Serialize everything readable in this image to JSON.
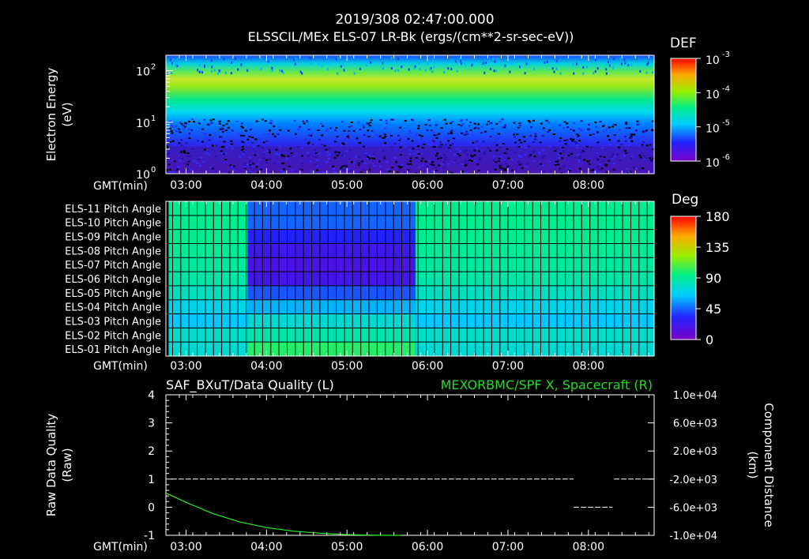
{
  "header": {
    "datetime": "2019/308 02:47:00.000",
    "instrument": "ELSSCIL/MEx ELS-07 LR-Bk  (ergs/(cm**2-sr-sec-eV))"
  },
  "colors": {
    "background": "#000000",
    "axis": "#ffffff",
    "quality_line": "#ffffff",
    "spacecraft_line": "#22ee22",
    "right_title": "#22dd22"
  },
  "chart_data": [
    {
      "type": "heatmap",
      "name": "electron-energy-spectrogram",
      "ylabel_1": "Electron Energy",
      "ylabel_2": "(eV)",
      "yscale": "log",
      "ylim": [
        1,
        200
      ],
      "y_ticks": [
        {
          "value": 1,
          "base": "10",
          "exp": "0"
        },
        {
          "value": 10,
          "base": "10",
          "exp": "1"
        },
        {
          "value": 100,
          "base": "10",
          "exp": "2"
        }
      ],
      "x_axis_label": "GMT(min)",
      "xlim_min": [
        165,
        529
      ],
      "x_ticks": [
        "03:00",
        "04:00",
        "05:00",
        "06:00",
        "07:00",
        "08:00"
      ],
      "x_tick_values": [
        180,
        240,
        300,
        360,
        420,
        480
      ],
      "colorbar": {
        "title": "DEF",
        "scale": "log",
        "range": [
          1e-06,
          0.001
        ],
        "ticks": [
          {
            "base": "10",
            "exp": "-3"
          },
          {
            "base": "10",
            "exp": "-4"
          },
          {
            "base": "10",
            "exp": "-5"
          },
          {
            "base": "10",
            "exp": "-6"
          }
        ]
      }
    },
    {
      "type": "heatmap",
      "name": "pitch-angle-grid",
      "rows": [
        "ELS-11 Pitch Angle",
        "ELS-10 Pitch Angle",
        "ELS-09 Pitch Angle",
        "ELS-08 Pitch Angle",
        "ELS-07 Pitch Angle",
        "ELS-06 Pitch Angle",
        "ELS-05 Pitch Angle",
        "ELS-04 Pitch Angle",
        "ELS-03 Pitch Angle",
        "ELS-02 Pitch Angle",
        "ELS-01 Pitch Angle"
      ],
      "x_axis_label": "GMT(min)",
      "x_ticks": [
        "03:00",
        "04:00",
        "05:00",
        "06:00",
        "07:00",
        "08:00"
      ],
      "x_tick_values": [
        180,
        240,
        300,
        360,
        420,
        480
      ],
      "xlim_min": [
        165,
        529
      ],
      "segments_min": [
        {
          "start": 167,
          "end": 226,
          "values": [
            92,
            92,
            92,
            90,
            88,
            86,
            80,
            70,
            64,
            78,
            76
          ]
        },
        {
          "start": 226,
          "end": 290,
          "values": [
            45,
            45,
            32,
            22,
            18,
            20,
            42,
            60,
            76,
            85,
            100
          ]
        },
        {
          "start": 290,
          "end": 351,
          "values": [
            45,
            45,
            32,
            22,
            18,
            20,
            42,
            60,
            76,
            85,
            100
          ]
        },
        {
          "start": 351,
          "end": 530,
          "values": [
            92,
            92,
            92,
            90,
            88,
            86,
            80,
            70,
            64,
            78,
            76
          ]
        }
      ],
      "colorbar": {
        "title": "Deg",
        "range": [
          0,
          180
        ],
        "ticks": [
          "180",
          "135",
          "90",
          "45",
          "0"
        ]
      }
    },
    {
      "type": "line",
      "name": "data-quality-and-spacecraft-position",
      "title_left": "SAF_BXuT/Data Quality (L)",
      "title_right": "MEXORBMC/SPF X, Spacecraft (R)",
      "ylabel_left_1": "Raw Data Quality",
      "ylabel_left_2": "(Raw)",
      "ylabel_right_1": "Component Distance",
      "ylabel_right_2": "(km)",
      "ylim_left": [
        -1,
        4
      ],
      "left_ticks": [
        "4",
        "3",
        "2",
        "1",
        "0",
        "-1"
      ],
      "ylim_right": [
        -10000,
        10000
      ],
      "right_ticks": [
        "1.0e+04",
        "6.0e+03",
        "2.0e+03",
        "-2.0e+03",
        "-6.0e+03",
        "-1.0e+04"
      ],
      "x_axis_label": "GMT(min)",
      "x_ticks": [
        "03:00",
        "04:00",
        "05:00",
        "06:00",
        "07:00",
        "08:00"
      ],
      "x_tick_values": [
        180,
        240,
        300,
        360,
        420,
        480
      ],
      "xlim_min": [
        165,
        529
      ],
      "series": [
        {
          "name": "Data Quality",
          "axis": "left",
          "segments": [
            {
              "x": [
                169,
                469
              ],
              "y": [
                1,
                1
              ]
            },
            {
              "x": [
                469,
                498
              ],
              "y": [
                0,
                0
              ]
            },
            {
              "x": [
                499,
                528
              ],
              "y": [
                1,
                1
              ]
            }
          ]
        },
        {
          "name": "SPF X",
          "axis": "right",
          "x": [
            165,
            180,
            200,
            220,
            240,
            260,
            280,
            300,
            315,
            330,
            340
          ],
          "y": [
            -4000,
            -5300,
            -6900,
            -8100,
            -8900,
            -9400,
            -9700,
            -9900,
            -9960,
            -9995,
            -10000
          ]
        }
      ]
    }
  ]
}
